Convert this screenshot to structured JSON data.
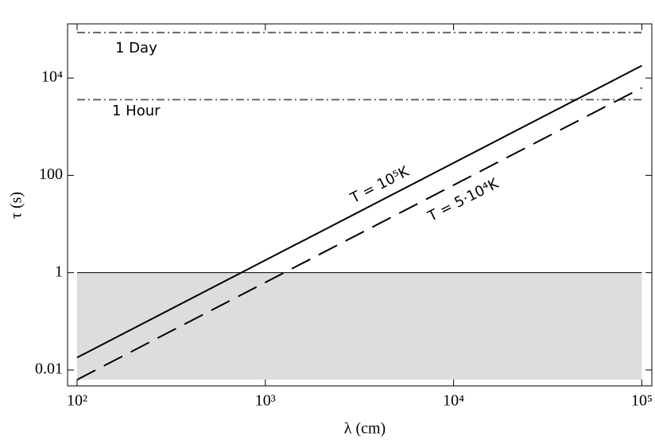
{
  "chart_data": {
    "type": "line",
    "log_x": true,
    "log_y": true,
    "x_label": "λ (cm)",
    "y_label": "τ (s)",
    "x": [
      100,
      100000
    ],
    "series": [
      {
        "name": "T = 10⁵K",
        "color": "#000000",
        "dash": "solid",
        "values": [
          0.018,
          18000
        ]
      },
      {
        "name": "T = 5·10⁴K",
        "color": "#000000",
        "dash": "dashed",
        "values": [
          0.0063,
          6300
        ]
      }
    ],
    "reference_lines": [
      {
        "label": "1 Day",
        "value": 86400,
        "color": "#666666"
      },
      {
        "label": "1 Hour",
        "value": 3600,
        "color": "#666666"
      }
    ],
    "shaded_region": {
      "x": [
        100,
        100000
      ],
      "y": [
        0.0063,
        1
      ],
      "color": "#dddddd"
    },
    "xlim": [
      89,
      113000
    ],
    "ylim": [
      0.0047,
      130000
    ],
    "xticks": [
      {
        "value": 100,
        "label": "10²"
      },
      {
        "value": 1000,
        "label": "10³"
      },
      {
        "value": 10000,
        "label": "10⁴"
      },
      {
        "value": 100000,
        "label": "10⁵"
      }
    ],
    "yticks": [
      0.01,
      1,
      100,
      {
        "value": 10000,
        "label": "10⁴"
      }
    ]
  }
}
